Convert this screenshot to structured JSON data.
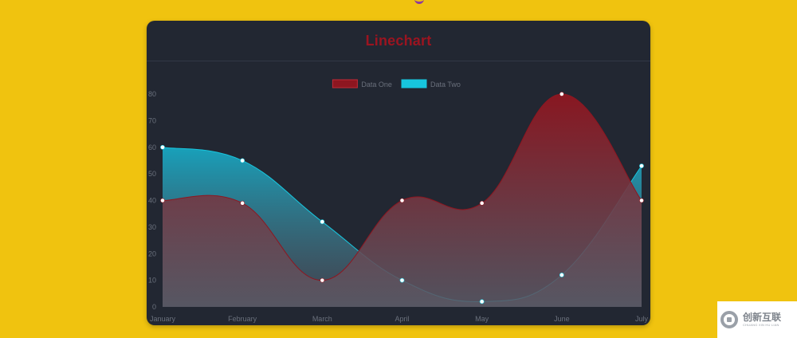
{
  "page": {
    "background": "#f0c30f"
  },
  "chart_data": {
    "type": "line",
    "title": "Linechart",
    "categories": [
      "January",
      "February",
      "March",
      "April",
      "May",
      "June",
      "July"
    ],
    "ylim": [
      0,
      80
    ],
    "yticks": [
      0,
      10,
      20,
      30,
      40,
      50,
      60,
      70,
      80
    ],
    "grid": false,
    "legend": "top",
    "fill": "area-gradient",
    "series": [
      {
        "name": "Data One",
        "values": [
          40,
          39,
          10,
          40,
          39,
          80,
          40
        ],
        "color": "#8e1620"
      },
      {
        "name": "Data Two",
        "values": [
          60,
          55,
          32,
          10,
          2,
          12,
          53
        ],
        "color": "#17c6de"
      }
    ]
  },
  "watermark": {
    "main": "创新互联",
    "sub": "CHUANG XIN HU LIAN"
  }
}
